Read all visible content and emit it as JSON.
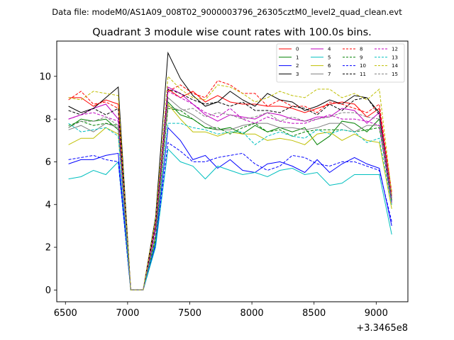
{
  "figure": {
    "suptitle": "Data file: modeM0/AS1A09_008T02_9000003796_26305cztM0_level2_quad_clean.evt",
    "offset_label": "+3.3465e8"
  },
  "chart_data": {
    "type": "line",
    "title": "Quadrant 3 module wise count rates with 100.0s bins.",
    "xlabel": "",
    "ylabel": "",
    "x_offset": 334650000,
    "xlim": [
      6430,
      9255
    ],
    "ylim": [
      -0.55,
      11.65
    ],
    "xticks": [
      6500,
      7000,
      7500,
      8000,
      8500,
      9000
    ],
    "xtick_labels": [
      "6500",
      "7000",
      "7500",
      "8000",
      "8500",
      "9000"
    ],
    "yticks": [
      0,
      2,
      4,
      6,
      8,
      10
    ],
    "ytick_labels": [
      "0",
      "2",
      "4",
      "6",
      "8",
      "10"
    ],
    "grid": false,
    "legend_placement": "top-right",
    "legend_columns": 4,
    "x": [
      6525,
      6625,
      6725,
      6825,
      6925,
      7025,
      7125,
      7225,
      7325,
      7425,
      7525,
      7625,
      7725,
      7825,
      7925,
      8025,
      8125,
      8225,
      8325,
      8425,
      8525,
      8625,
      8725,
      8825,
      8925,
      9025,
      9125
    ],
    "series": [
      {
        "name": "0",
        "color": "#ff0000",
        "dash": "solid",
        "values": [
          9.0,
          9.0,
          8.6,
          8.9,
          8.7,
          0.0,
          0.0,
          3.0,
          9.4,
          9.0,
          9.3,
          8.8,
          9.1,
          8.8,
          8.7,
          8.7,
          8.6,
          8.6,
          8.5,
          8.3,
          8.5,
          8.7,
          8.8,
          8.7,
          8.1,
          8.5,
          4.4
        ]
      },
      {
        "name": "1",
        "color": "#008000",
        "dash": "solid",
        "values": [
          7.6,
          8.0,
          7.9,
          8.0,
          7.5,
          0.0,
          0.0,
          2.3,
          8.8,
          8.2,
          8.0,
          7.6,
          7.5,
          7.6,
          7.3,
          7.7,
          7.4,
          7.6,
          7.4,
          7.6,
          6.8,
          7.2,
          7.9,
          7.8,
          7.4,
          8.0,
          4.3
        ]
      },
      {
        "name": "2",
        "color": "#0000ff",
        "dash": "solid",
        "values": [
          5.9,
          6.1,
          6.1,
          6.3,
          6.4,
          0.0,
          0.0,
          2.1,
          7.6,
          7.0,
          6.1,
          6.3,
          5.7,
          6.1,
          5.6,
          5.5,
          5.9,
          6.0,
          5.8,
          5.5,
          6.1,
          5.5,
          5.9,
          6.2,
          5.9,
          5.7,
          3.0
        ]
      },
      {
        "name": "3",
        "color": "#000000",
        "dash": "solid",
        "values": [
          8.6,
          8.3,
          8.5,
          9.0,
          9.5,
          0.0,
          0.0,
          3.4,
          11.1,
          9.9,
          9.1,
          8.6,
          8.8,
          9.3,
          8.9,
          8.6,
          9.2,
          8.9,
          8.8,
          8.4,
          8.6,
          8.9,
          8.7,
          9.1,
          9.0,
          8.3,
          4.1
        ]
      },
      {
        "name": "4",
        "color": "#bf00bf",
        "dash": "solid",
        "values": [
          8.0,
          8.2,
          8.5,
          8.7,
          8.0,
          0.0,
          0.0,
          3.0,
          9.5,
          9.2,
          8.7,
          8.2,
          7.9,
          8.2,
          8.1,
          8.0,
          8.3,
          8.2,
          8.0,
          7.9,
          8.1,
          8.1,
          8.5,
          8.4,
          7.8,
          8.3,
          4.3
        ]
      },
      {
        "name": "5",
        "color": "#00bfbf",
        "dash": "solid",
        "values": [
          5.2,
          5.3,
          5.6,
          5.4,
          6.0,
          0.0,
          0.0,
          2.0,
          6.6,
          6.0,
          5.8,
          5.2,
          5.8,
          5.6,
          5.4,
          5.5,
          5.3,
          5.6,
          5.7,
          5.4,
          5.5,
          4.9,
          5.0,
          5.4,
          5.4,
          5.4,
          2.6
        ]
      },
      {
        "name": "6",
        "color": "#bfbf00",
        "dash": "solid",
        "values": [
          6.8,
          7.1,
          7.1,
          7.6,
          7.3,
          0.0,
          0.0,
          2.5,
          8.7,
          8.0,
          7.4,
          7.4,
          7.2,
          7.4,
          7.3,
          7.3,
          7.0,
          7.1,
          7.0,
          6.8,
          7.3,
          7.4,
          7.0,
          7.3,
          7.0,
          6.9,
          3.8
        ]
      },
      {
        "name": "7",
        "color": "#808080",
        "dash": "solid",
        "values": [
          7.5,
          7.7,
          7.4,
          7.8,
          7.6,
          0.0,
          0.0,
          2.6,
          9.0,
          8.5,
          8.2,
          7.8,
          7.5,
          7.5,
          7.7,
          7.8,
          7.8,
          7.6,
          7.6,
          7.5,
          7.6,
          7.8,
          7.8,
          7.4,
          7.7,
          7.7,
          4.0
        ]
      },
      {
        "name": "8",
        "color": "#ff0000",
        "dash": "dashed",
        "values": [
          8.9,
          9.3,
          8.7,
          8.8,
          8.5,
          0.0,
          0.0,
          3.1,
          9.3,
          9.6,
          9.2,
          9.0,
          9.8,
          9.6,
          9.2,
          9.2,
          8.6,
          8.9,
          8.6,
          8.6,
          8.3,
          8.8,
          8.7,
          8.5,
          8.3,
          8.7,
          4.6
        ]
      },
      {
        "name": "9",
        "color": "#008000",
        "dash": "dashed",
        "values": [
          7.7,
          7.9,
          7.7,
          7.8,
          7.7,
          0.0,
          0.0,
          2.4,
          8.5,
          8.4,
          8.0,
          7.6,
          7.6,
          7.3,
          7.6,
          7.8,
          7.4,
          7.5,
          7.2,
          7.4,
          7.5,
          7.5,
          7.5,
          7.4,
          7.5,
          7.6,
          4.2
        ]
      },
      {
        "name": "10",
        "color": "#0000ff",
        "dash": "dashed",
        "values": [
          6.1,
          6.2,
          6.3,
          6.1,
          6.0,
          0.0,
          0.0,
          2.2,
          6.9,
          6.5,
          6.0,
          6.0,
          6.2,
          6.3,
          6.4,
          5.9,
          5.6,
          5.8,
          6.3,
          6.2,
          5.9,
          5.8,
          6.0,
          6.0,
          5.8,
          5.6,
          3.2
        ]
      },
      {
        "name": "11",
        "color": "#000000",
        "dash": "dashed",
        "values": [
          8.4,
          8.2,
          8.5,
          8.2,
          8.5,
          0.0,
          0.0,
          3.0,
          9.4,
          9.2,
          8.9,
          8.7,
          8.8,
          8.6,
          8.8,
          8.4,
          8.4,
          8.3,
          8.6,
          8.5,
          8.2,
          8.7,
          8.4,
          8.9,
          9.0,
          8.2,
          4.2
        ]
      },
      {
        "name": "12",
        "color": "#bf00bf",
        "dash": "dashed",
        "values": [
          8.0,
          8.2,
          8.3,
          8.1,
          7.9,
          0.0,
          0.0,
          2.8,
          9.3,
          9.0,
          8.7,
          8.3,
          8.1,
          8.5,
          8.0,
          7.8,
          8.1,
          7.9,
          7.8,
          7.8,
          8.0,
          8.2,
          8.0,
          8.0,
          7.9,
          7.7,
          4.1
        ]
      },
      {
        "name": "13",
        "color": "#00bfbf",
        "dash": "dashed",
        "values": [
          7.8,
          7.4,
          7.5,
          7.6,
          7.2,
          0.0,
          0.0,
          2.3,
          7.8,
          7.8,
          7.6,
          7.5,
          7.3,
          7.4,
          7.4,
          6.8,
          7.2,
          7.4,
          7.2,
          7.1,
          7.5,
          7.3,
          7.5,
          7.4,
          6.9,
          7.1,
          4.0
        ]
      },
      {
        "name": "14",
        "color": "#bfbf00",
        "dash": "dashed",
        "values": [
          9.0,
          8.9,
          9.3,
          9.2,
          9.1,
          0.0,
          0.0,
          3.3,
          10.0,
          9.4,
          9.0,
          8.9,
          9.6,
          9.5,
          9.2,
          8.8,
          9.0,
          9.3,
          9.1,
          9.0,
          9.4,
          9.4,
          9.0,
          9.2,
          8.9,
          9.4,
          4.5
        ]
      },
      {
        "name": "15",
        "color": "#808080",
        "dash": "dashed",
        "values": [
          7.6,
          7.9,
          7.9,
          8.1,
          7.7,
          0.0,
          0.0,
          2.6,
          8.6,
          8.4,
          8.5,
          8.1,
          8.3,
          8.2,
          8.0,
          8.1,
          8.3,
          7.9,
          8.1,
          7.9,
          8.0,
          8.1,
          8.3,
          8.3,
          8.1,
          8.0,
          4.3
        ]
      }
    ]
  }
}
